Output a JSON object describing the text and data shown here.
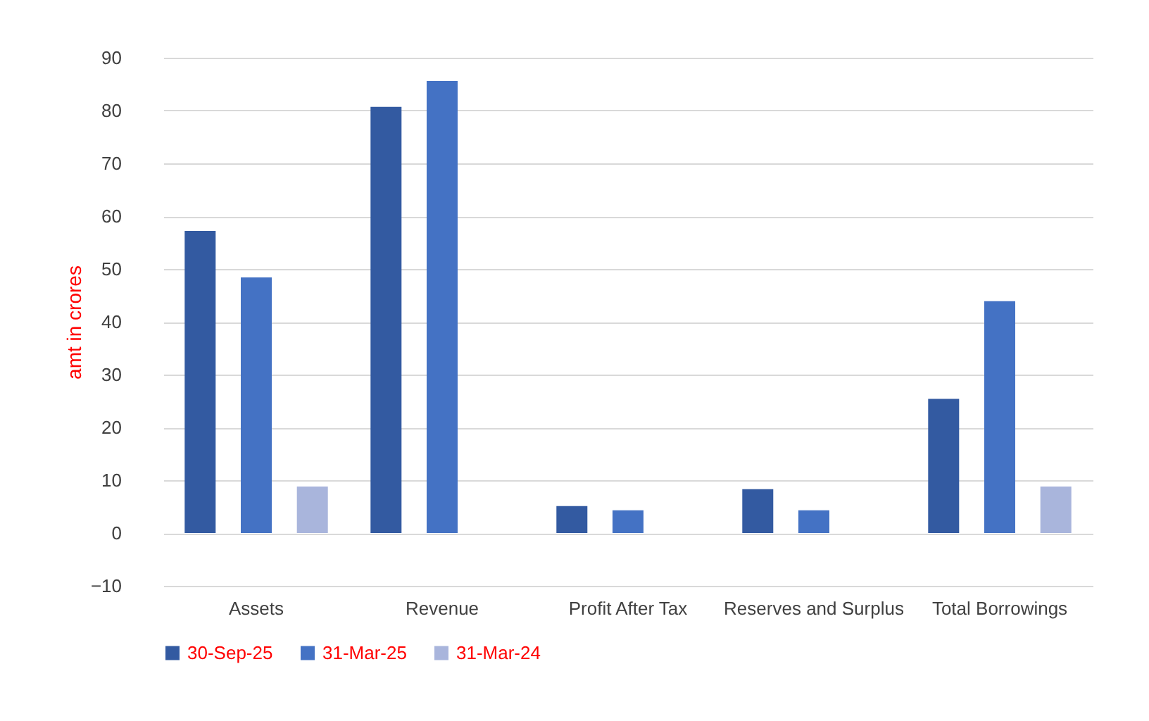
{
  "chart_data": {
    "type": "bar",
    "ylabel": "amt in crores",
    "categories": [
      "Assets",
      "Revenue",
      "Profit After Tax",
      "Reserves and Surplus",
      "Total Borrowings"
    ],
    "series": [
      {
        "name": "30-Sep-25",
        "color": "#335aa1",
        "values": [
          57.2,
          80.7,
          5.1,
          8.3,
          25.4
        ]
      },
      {
        "name": "31-Mar-25",
        "color": "#4472c4",
        "values": [
          48.4,
          85.6,
          4.3,
          4.3,
          43.9
        ]
      },
      {
        "name": "31-Mar-24",
        "color": "#a9b5dc",
        "values": [
          8.8,
          null,
          null,
          null,
          8.8
        ]
      }
    ],
    "ylim": [
      -10,
      90
    ],
    "yticks": [
      -10,
      0,
      10,
      20,
      30,
      40,
      50,
      60,
      70,
      80,
      90
    ],
    "grid": "y",
    "legend": "bottom"
  }
}
